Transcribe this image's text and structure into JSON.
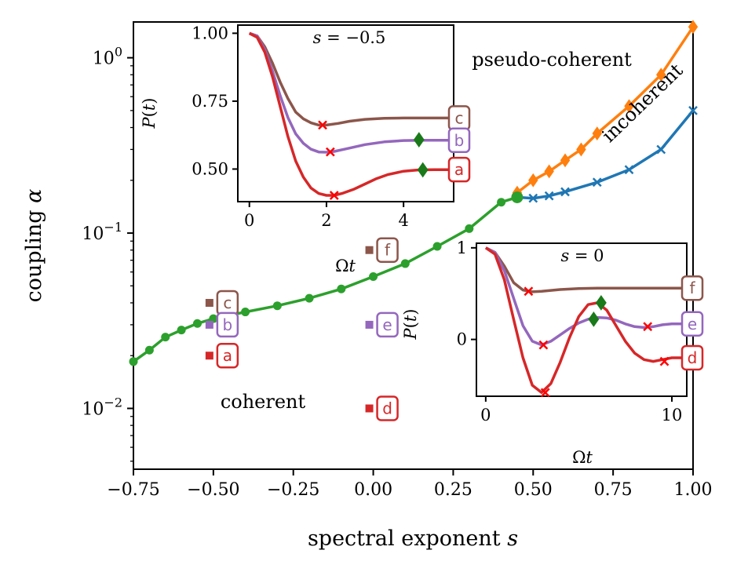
{
  "chart_data": [
    {
      "type": "line",
      "xlabel": "spectral exponent s",
      "ylabel": "coupling α",
      "xlim": [
        -0.75,
        1.0
      ],
      "ylim": [
        0.0045,
        1.6
      ],
      "yscale": "log",
      "xticks": [
        "−0.75",
        "−0.50",
        "−0.25",
        "0.00",
        "0.25",
        "0.50",
        "0.75",
        "1.00"
      ],
      "yticks": [
        {
          "base": "10",
          "exp": "0",
          "value": 1
        },
        {
          "base": "10",
          "exp": "−1",
          "value": 0.1
        },
        {
          "base": "10",
          "exp": "−2",
          "value": 0.01
        }
      ],
      "region_labels": {
        "coherent": "coherent",
        "pseudo": "pseudo-coherent",
        "incoherent": "incoherent"
      },
      "series": [
        {
          "key": "coherent_boundary",
          "color": "#2ca02c",
          "marker": "circle",
          "x": [
            -0.75,
            -0.7,
            -0.65,
            -0.6,
            -0.55,
            -0.5,
            -0.45,
            -0.4,
            -0.3,
            -0.2,
            -0.1,
            0.0,
            0.1,
            0.2,
            0.3,
            0.4,
            0.45
          ],
          "y": [
            0.0185,
            0.0215,
            0.0255,
            0.028,
            0.0305,
            0.0325,
            0.034,
            0.0355,
            0.0385,
            0.0425,
            0.048,
            0.0565,
            0.067,
            0.084,
            0.106,
            0.15,
            0.16
          ]
        },
        {
          "key": "pseudo_boundary",
          "color": "#ff7f0e",
          "marker": "diamond",
          "x": [
            0.45,
            0.5,
            0.55,
            0.6,
            0.65,
            0.7,
            0.8,
            0.9,
            1.0
          ],
          "y": [
            0.17,
            0.2,
            0.225,
            0.26,
            0.3,
            0.37,
            0.53,
            0.8,
            1.5
          ]
        },
        {
          "key": "incoherent_boundary",
          "color": "#1f77b4",
          "marker": "x",
          "x": [
            0.45,
            0.5,
            0.55,
            0.6,
            0.7,
            0.8,
            0.9,
            1.0
          ],
          "y": [
            0.16,
            0.158,
            0.163,
            0.172,
            0.195,
            0.23,
            0.3,
            0.5
          ]
        }
      ],
      "points": [
        {
          "label": "c",
          "s": -0.5,
          "alpha": 0.04,
          "color": "#8c564b"
        },
        {
          "label": "b",
          "s": -0.5,
          "alpha": 0.03,
          "color": "#9467bd"
        },
        {
          "label": "a",
          "s": -0.5,
          "alpha": 0.02,
          "color": "#d62728"
        },
        {
          "label": "f",
          "s": 0.0,
          "alpha": 0.08,
          "color": "#8c564b"
        },
        {
          "label": "e",
          "s": 0.0,
          "alpha": 0.03,
          "color": "#9467bd"
        },
        {
          "label": "d",
          "s": 0.0,
          "alpha": 0.01,
          "color": "#d62728"
        }
      ]
    },
    {
      "type": "line",
      "title": "s = −0.5",
      "xlabel": "Ωt",
      "ylabel": "P(t)",
      "xlim": [
        -0.3,
        5.3
      ],
      "ylim": [
        0.38,
        1.03
      ],
      "xticks": [
        "0",
        "2",
        "4"
      ],
      "yticks": [
        "1.00",
        "0.75",
        "0.50"
      ],
      "series": [
        {
          "label": "c",
          "color": "#8c564b",
          "x": [
            0,
            0.2,
            0.4,
            0.6,
            0.8,
            1.0,
            1.2,
            1.4,
            1.6,
            1.8,
            2.0,
            2.3,
            2.6,
            3.0,
            3.5,
            4.0,
            4.5,
            5.0,
            5.2
          ],
          "y": [
            1.0,
            0.99,
            0.95,
            0.89,
            0.82,
            0.76,
            0.71,
            0.685,
            0.67,
            0.662,
            0.662,
            0.668,
            0.676,
            0.683,
            0.687,
            0.688,
            0.688,
            0.688,
            0.688
          ]
        },
        {
          "label": "b",
          "color": "#9467bd",
          "x": [
            0,
            0.2,
            0.4,
            0.6,
            0.8,
            1.0,
            1.2,
            1.4,
            1.6,
            1.8,
            2.0,
            2.2,
            2.5,
            3.0,
            3.5,
            4.0,
            4.5,
            5.0,
            5.2
          ],
          "y": [
            1.0,
            0.99,
            0.94,
            0.86,
            0.77,
            0.69,
            0.63,
            0.595,
            0.573,
            0.563,
            0.562,
            0.565,
            0.574,
            0.59,
            0.6,
            0.605,
            0.606,
            0.606,
            0.606
          ]
        },
        {
          "label": "a",
          "color": "#d62728",
          "x": [
            0,
            0.2,
            0.4,
            0.6,
            0.8,
            1.0,
            1.2,
            1.4,
            1.6,
            1.8,
            2.0,
            2.2,
            2.4,
            2.7,
            3.0,
            3.3,
            3.6,
            4.0,
            4.4,
            4.8,
            5.2
          ],
          "y": [
            1.0,
            0.985,
            0.93,
            0.84,
            0.73,
            0.62,
            0.53,
            0.47,
            0.43,
            0.41,
            0.403,
            0.403,
            0.41,
            0.425,
            0.445,
            0.465,
            0.48,
            0.492,
            0.497,
            0.498,
            0.498
          ]
        }
      ],
      "markers": [
        {
          "series": "c",
          "x": 1.9,
          "y": 0.662,
          "symbol": "x"
        },
        {
          "series": "b",
          "x": 2.1,
          "y": 0.563,
          "symbol": "x"
        },
        {
          "series": "a",
          "x": 2.2,
          "y": 0.403,
          "symbol": "x"
        },
        {
          "series": "b",
          "x": 4.4,
          "y": 0.608,
          "symbol": "diamond"
        },
        {
          "series": "a",
          "x": 4.5,
          "y": 0.497,
          "symbol": "diamond"
        }
      ]
    },
    {
      "type": "line",
      "title": "s = 0",
      "xlabel": "Ωt",
      "ylabel": "P(t)",
      "xlim": [
        -0.5,
        10.8
      ],
      "ylim": [
        -0.62,
        1.05
      ],
      "xticks": [
        "0",
        "10"
      ],
      "yticks": [
        "1",
        "0"
      ],
      "series": [
        {
          "label": "f",
          "color": "#8c564b",
          "x": [
            0,
            0.5,
            1.0,
            1.5,
            2.0,
            2.5,
            3.0,
            4.0,
            5.0,
            6.0,
            7.0,
            8.0,
            9.0,
            10.0,
            10.8
          ],
          "y": [
            1.0,
            0.95,
            0.8,
            0.62,
            0.54,
            0.52,
            0.525,
            0.545,
            0.555,
            0.56,
            0.56,
            0.56,
            0.56,
            0.56,
            0.56
          ]
        },
        {
          "label": "e",
          "color": "#9467bd",
          "x": [
            0,
            0.5,
            1.0,
            1.5,
            2.0,
            2.5,
            3.0,
            3.5,
            4.0,
            4.5,
            5.0,
            5.5,
            6.0,
            6.5,
            7.0,
            7.5,
            8.0,
            8.5,
            9.0,
            9.5,
            10.0,
            10.8
          ],
          "y": [
            1.0,
            0.95,
            0.75,
            0.45,
            0.15,
            -0.02,
            -0.06,
            -0.02,
            0.05,
            0.12,
            0.18,
            0.22,
            0.24,
            0.235,
            0.21,
            0.17,
            0.14,
            0.13,
            0.14,
            0.16,
            0.17,
            0.17
          ]
        },
        {
          "label": "d",
          "color": "#d62728",
          "x": [
            0,
            0.5,
            1.0,
            1.5,
            2.0,
            2.5,
            3.0,
            3.5,
            4.0,
            4.5,
            5.0,
            5.5,
            6.0,
            6.5,
            7.0,
            7.5,
            8.0,
            8.5,
            9.0,
            9.5,
            10.0,
            10.8
          ],
          "y": [
            1.0,
            0.93,
            0.65,
            0.22,
            -0.2,
            -0.5,
            -0.58,
            -0.48,
            -0.25,
            0.02,
            0.25,
            0.38,
            0.4,
            0.32,
            0.15,
            -0.02,
            -0.15,
            -0.22,
            -0.24,
            -0.22,
            -0.2,
            -0.2
          ]
        }
      ],
      "markers": [
        {
          "series": "f",
          "x": 2.3,
          "y": 0.525,
          "symbol": "x"
        },
        {
          "series": "e",
          "x": 3.1,
          "y": -0.06,
          "symbol": "x"
        },
        {
          "series": "d",
          "x": 3.2,
          "y": -0.58,
          "symbol": "x"
        },
        {
          "series": "e",
          "x": 5.8,
          "y": 0.22,
          "symbol": "diamond"
        },
        {
          "series": "d",
          "x": 6.2,
          "y": 0.4,
          "symbol": "diamond"
        },
        {
          "series": "e",
          "x": 8.7,
          "y": 0.14,
          "symbol": "x"
        },
        {
          "series": "d",
          "x": 9.6,
          "y": -0.24,
          "symbol": "x"
        }
      ]
    }
  ]
}
